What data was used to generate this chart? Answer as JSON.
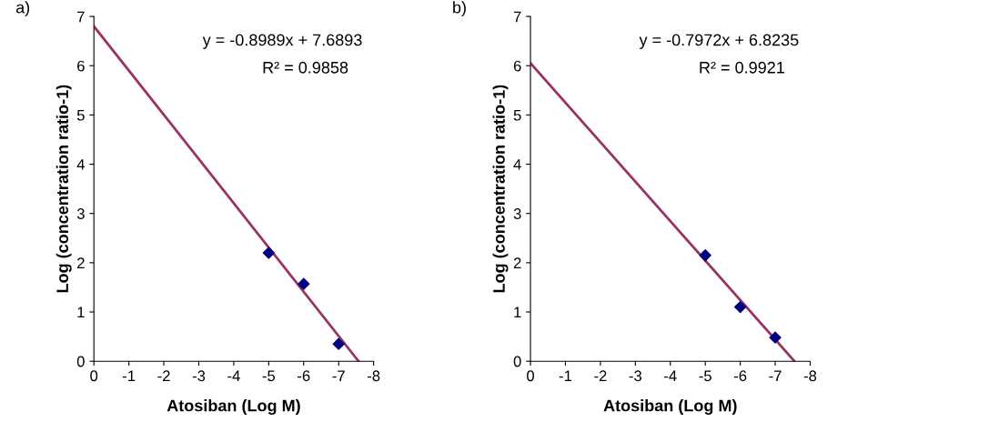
{
  "chart_data": [
    {
      "type": "scatter",
      "title": "a)",
      "xlabel": "Atosiban (Log M)",
      "ylabel": "Log (concentration ratio-1)",
      "x": [
        -5,
        -6,
        -7
      ],
      "xlim": [
        0,
        -8
      ],
      "xticks": [
        0,
        -1,
        -2,
        -3,
        -4,
        -5,
        -6,
        -7,
        -8
      ],
      "ylim": [
        0,
        7
      ],
      "yticks": [
        0,
        1,
        2,
        3,
        4,
        5,
        6,
        7
      ],
      "series": [
        {
          "color": "#000080",
          "marker": "diamond",
          "values": [
            2.2,
            1.57,
            0.35
          ]
        },
        {
          "type": "line",
          "color": "#993366",
          "marker": "none",
          "x": [
            0,
            -7.57
          ],
          "values": [
            6.8,
            0
          ]
        }
      ],
      "annotations": [
        "y = -0.8989x + 7.6893",
        "R² = 0.9858"
      ],
      "grid": false,
      "legend": false
    },
    {
      "type": "scatter",
      "title": "b)",
      "xlabel": "Atosiban (Log M)",
      "ylabel": "Log (concentration ratio-1)",
      "x": [
        -5,
        -6,
        -7
      ],
      "xlim": [
        0,
        -8
      ],
      "xticks": [
        0,
        -1,
        -2,
        -3,
        -4,
        -5,
        -6,
        -7,
        -8
      ],
      "ylim": [
        0,
        7
      ],
      "yticks": [
        0,
        1,
        2,
        3,
        4,
        5,
        6,
        7
      ],
      "series": [
        {
          "color": "#000080",
          "marker": "diamond",
          "values": [
            2.15,
            1.1,
            0.48
          ]
        },
        {
          "type": "line",
          "color": "#993366",
          "marker": "none",
          "x": [
            0,
            -7.55
          ],
          "values": [
            6.05,
            0
          ]
        }
      ],
      "annotations": [
        "y = -0.7972x + 6.8235",
        "R² = 0.9921"
      ],
      "grid": false,
      "legend": false
    }
  ]
}
